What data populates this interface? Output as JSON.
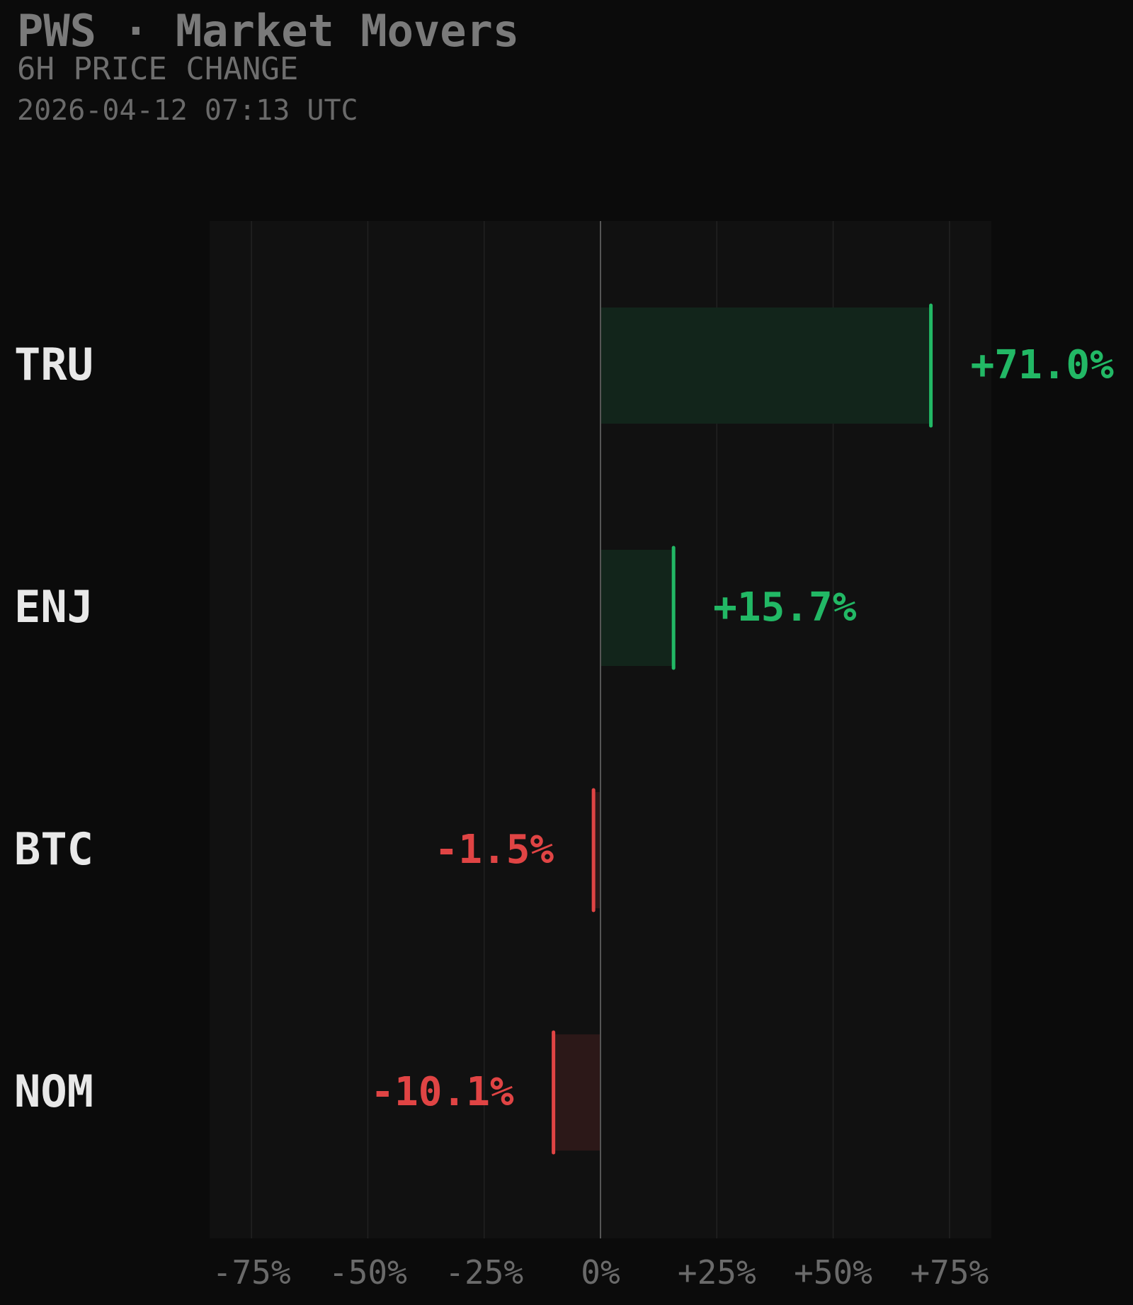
{
  "header": {
    "title": "PWS · Market Movers",
    "subtitle": "6H PRICE CHANGE",
    "timestamp": "2026-04-12 07:13 UTC"
  },
  "colors": {
    "background": "#0b0b0b",
    "plot_background": "#111111",
    "gridline": "#222222",
    "zero_line": "#555555",
    "positive": "#22b865",
    "positive_fill": "#12251b",
    "negative": "#e04444",
    "negative_fill": "#2c1818",
    "label": "#e8e8e8",
    "tick": "#6a6a6a"
  },
  "chart_data": {
    "type": "bar",
    "orientation": "horizontal",
    "categories": [
      "TRU",
      "ENJ",
      "BTC",
      "NOM"
    ],
    "values": [
      71.0,
      15.7,
      -1.5,
      -10.1
    ],
    "value_labels": [
      "+71.0%",
      "+15.7%",
      "-1.5%",
      "-10.1%"
    ],
    "xlim": [
      -84,
      84
    ],
    "xticks": [
      -75,
      -50,
      -25,
      0,
      25,
      50,
      75
    ],
    "xtick_labels": [
      "-75%",
      "-50%",
      "-25%",
      "0%",
      "+25%",
      "+50%",
      "+75%"
    ],
    "grid": true
  }
}
